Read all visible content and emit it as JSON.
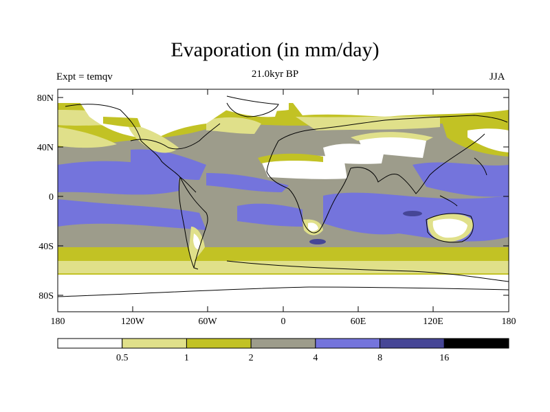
{
  "title": "Evaporation (in mm/day)",
  "subtitle": "21.0kyr BP",
  "left_label": "Expt = temqv",
  "right_label": "JJA",
  "map": {
    "projection": "cylindrical-equidistant",
    "lon_range": [
      -180,
      180
    ],
    "lat_range": [
      -90,
      90
    ],
    "lat_tick_labels": [
      "80N",
      "40N",
      "0",
      "40S",
      "80S"
    ],
    "lon_tick_labels": [
      "180",
      "120W",
      "60W",
      "0",
      "60E",
      "120E",
      "180"
    ],
    "coastlines": true
  },
  "colorbar": {
    "levels": [
      "0.5",
      "1",
      "2",
      "4",
      "8",
      "16"
    ],
    "colors": [
      "#ffffff",
      "#e0e08a",
      "#c2c224",
      "#9d9c8b",
      "#7474dc",
      "#464696",
      "#000000"
    ]
  }
}
